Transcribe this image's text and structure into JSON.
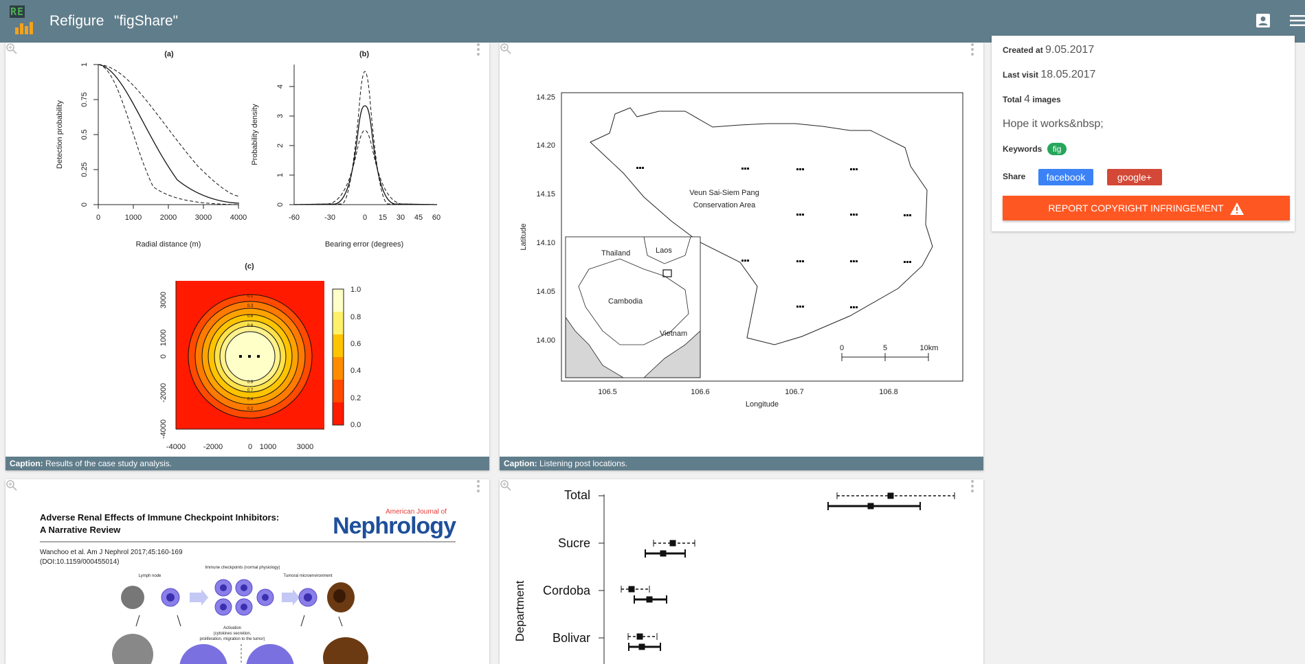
{
  "app": {
    "title": "Refigure",
    "query": "\"figShare\""
  },
  "logo": {
    "letters": "RE"
  },
  "cards": [
    {
      "caption_label": "Caption:",
      "caption": "Results of the case study analysis."
    },
    {
      "caption_label": "Caption:",
      "caption": "Listening post locations."
    }
  ],
  "fig_a": {
    "panel": "(a)",
    "ylabel": "Detection probability",
    "xlabel": "Radial distance (m)",
    "xticks": [
      "0",
      "1000",
      "2000",
      "3000",
      "4000"
    ],
    "yticks": [
      "0",
      "0.25",
      "0.5",
      "0.75",
      "1"
    ]
  },
  "fig_b": {
    "panel": "(b)",
    "ylabel": "Probability density",
    "xlabel": "Bearing error (degrees)",
    "xticks": [
      "-60",
      "-30",
      "0",
      "15",
      "30",
      "45",
      "60"
    ],
    "yticks": [
      "0",
      "1",
      "2",
      "3",
      "4"
    ]
  },
  "fig_c": {
    "panel": "(c)",
    "xticks": [
      "-4000",
      "-2000",
      "0",
      "1000",
      "3000"
    ],
    "yticks": [
      "-4000",
      "-2000",
      "0",
      "1000",
      "3000"
    ],
    "legend": [
      "1.0",
      "0.8",
      "0.6",
      "0.4",
      "0.2",
      "0.0"
    ],
    "contours": [
      "0.1",
      "0.3",
      "0.6",
      "0.8",
      "0.9",
      "0.7",
      "0.4",
      "0.2"
    ]
  },
  "map": {
    "ylabel": "Latitude",
    "xlabel": "Longitude",
    "yticks": [
      "14.25",
      "14.20",
      "14.15",
      "14.10",
      "14.05",
      "14.00"
    ],
    "xticks": [
      "106.5",
      "106.6",
      "106.7",
      "106.8"
    ],
    "area_label_1": "Veun Sai-Siem Pang",
    "area_label_2": "Conservation Area",
    "scale": [
      "0",
      "5",
      "10km"
    ],
    "inset": {
      "thailand": "Thailand",
      "laos": "Laos",
      "cambodia": "Cambodia",
      "vietnam": "Vietnam"
    }
  },
  "paper": {
    "title_1": "Adverse Renal Effects of Immune Checkpoint Inhibitors:",
    "title_2": "A Narrative Review",
    "journal_small": "American Journal of",
    "journal": "Nephrology",
    "citation_1": "Wanchoo et al. Am J Nephrol 2017;45:160-169",
    "citation_2": "(DOI:10.1159/000455014)",
    "lbl_lymph": "Lymph node",
    "lbl_checkpoints": "Immune checkpoints (normal physiology)",
    "lbl_tumor": "Tumoral microenvironment",
    "lbl_activation": "Activation",
    "lbl_activation_2": "(cytokines secretion,",
    "lbl_activation_3": "proliferation, migration to the tumor)"
  },
  "forest": {
    "ylabel": "Department",
    "categories": [
      "Total",
      "Sucre",
      "Cordoba",
      "Bolivar"
    ]
  },
  "info": {
    "created_label": "Created at",
    "created": "9.05.2017",
    "visit_label": "Last visit",
    "visit": "18.05.2017",
    "total_label": "Total",
    "total": "4",
    "images_label": "images",
    "description": "Hope it works&nbsp;",
    "keywords_label": "Keywords",
    "keyword": "fig",
    "share_label": "Share",
    "facebook": "facebook",
    "google": "google+",
    "report": "Report copyright infringement"
  },
  "colors": {
    "topbar": "#607d8b",
    "facebook": "#3b82f6",
    "google": "#d34836",
    "report": "#ff5722",
    "keyword": "#26a65b"
  }
}
